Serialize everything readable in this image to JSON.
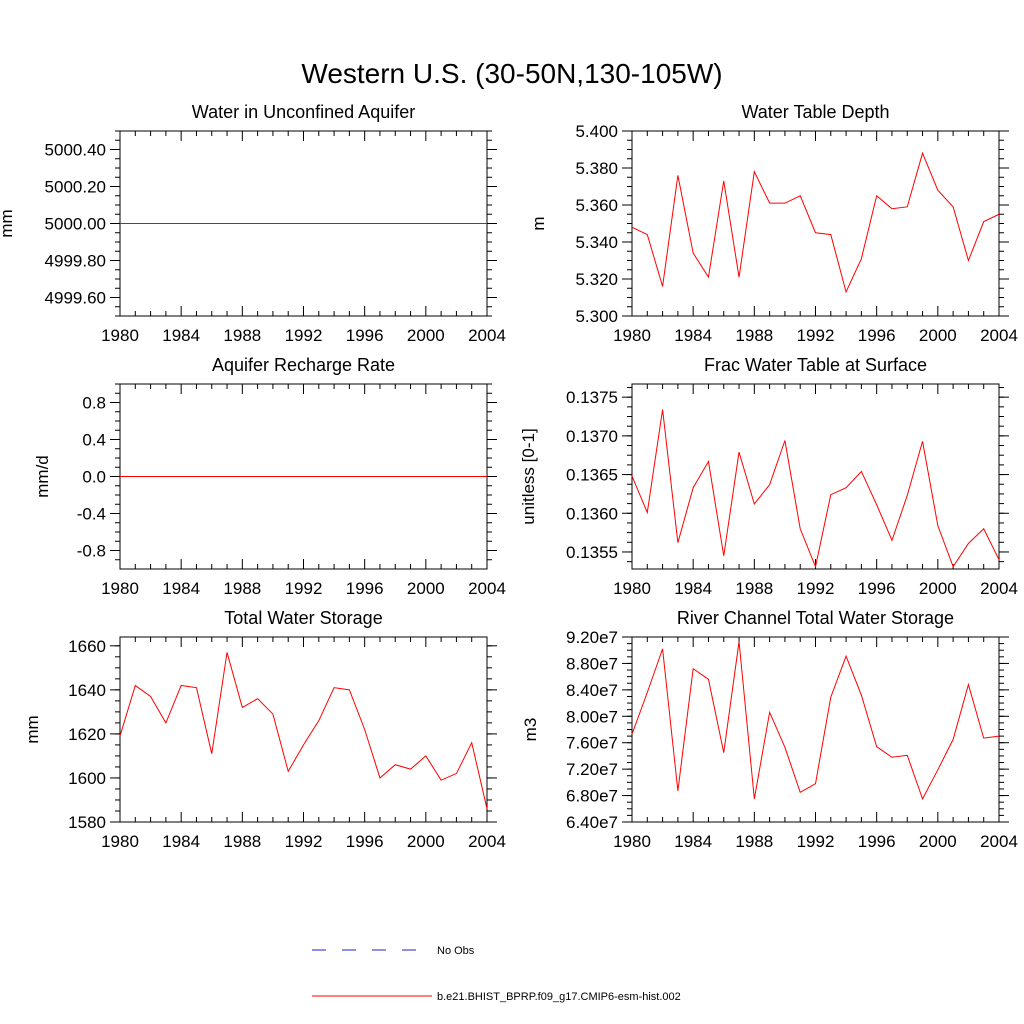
{
  "main_title": "Western U.S. (30-50N,130-105W)",
  "legend": [
    {
      "label": "No Obs",
      "color": "#2020c0",
      "dash": true
    },
    {
      "label": "b.e21.BHIST_BPRP.f09_g17.CMIP6-esm-hist.002",
      "color": "#ff0000",
      "dash": false
    }
  ],
  "chart_data": [
    {
      "type": "line",
      "title": "Water in Unconfined Aquifer",
      "ylabel": "mm",
      "xlim": [
        1980,
        2004
      ],
      "ylim": [
        4999.5,
        5000.5
      ],
      "xticks": [
        1980,
        1984,
        1988,
        1992,
        1996,
        2000,
        2004
      ],
      "yticks": [
        4999.6,
        4999.8,
        5000.0,
        5000.2,
        5000.4
      ],
      "ytick_labels": [
        "4999.60",
        "4999.80",
        "5000.00",
        "5000.20",
        "5000.40"
      ],
      "series": [
        {
          "color": "#ff0000",
          "x": [
            1980,
            1981,
            1982,
            1983,
            1984,
            1985,
            1986,
            1987,
            1988,
            1989,
            1990,
            1991,
            1992,
            1993,
            1994,
            1995,
            1996,
            1997,
            1998,
            1999,
            2000,
            2001,
            2002,
            2003,
            2004
          ],
          "y": [
            5000,
            5000,
            5000,
            5000,
            5000,
            5000,
            5000,
            5000,
            5000,
            5000,
            5000,
            5000,
            5000,
            5000,
            5000,
            5000,
            5000,
            5000,
            5000,
            5000,
            5000,
            5000,
            5000,
            5000,
            5000
          ]
        }
      ]
    },
    {
      "type": "line",
      "title": "Water Table Depth",
      "ylabel": "m",
      "xlim": [
        1980,
        2004
      ],
      "ylim": [
        5.3,
        5.4
      ],
      "xticks": [
        1980,
        1984,
        1988,
        1992,
        1996,
        2000,
        2004
      ],
      "yticks": [
        5.3,
        5.32,
        5.34,
        5.36,
        5.38,
        5.4
      ],
      "ytick_labels": [
        "5.300",
        "5.320",
        "5.340",
        "5.360",
        "5.380",
        "5.400"
      ],
      "series": [
        {
          "color": "#ff0000",
          "x": [
            1980,
            1981,
            1982,
            1983,
            1984,
            1985,
            1986,
            1987,
            1988,
            1989,
            1990,
            1991,
            1992,
            1993,
            1994,
            1995,
            1996,
            1997,
            1998,
            1999,
            2000,
            2001,
            2002,
            2003,
            2004
          ],
          "y": [
            5.348,
            5.344,
            5.316,
            5.376,
            5.334,
            5.321,
            5.373,
            5.321,
            5.378,
            5.361,
            5.361,
            5.365,
            5.345,
            5.344,
            5.313,
            5.331,
            5.365,
            5.358,
            5.359,
            5.388,
            5.368,
            5.359,
            5.33,
            5.351,
            5.355
          ]
        }
      ]
    },
    {
      "type": "line",
      "title": "Aquifer Recharge Rate",
      "ylabel": "mm/d",
      "xlim": [
        1980,
        2004
      ],
      "ylim": [
        -1.0,
        1.0
      ],
      "xticks": [
        1980,
        1984,
        1988,
        1992,
        1996,
        2000,
        2004
      ],
      "yticks": [
        -0.8,
        -0.4,
        0.0,
        0.4,
        0.8
      ],
      "ytick_labels": [
        "-0.8",
        "-0.4",
        "0.0",
        "0.4",
        "0.8"
      ],
      "series": [
        {
          "color": "#ff0000",
          "x": [
            1980,
            1981,
            1982,
            1983,
            1984,
            1985,
            1986,
            1987,
            1988,
            1989,
            1990,
            1991,
            1992,
            1993,
            1994,
            1995,
            1996,
            1997,
            1998,
            1999,
            2000,
            2001,
            2002,
            2003,
            2004
          ],
          "y": [
            0,
            0,
            0,
            0,
            0,
            0,
            0,
            0,
            0,
            0,
            0,
            0,
            0,
            0,
            0,
            0,
            0,
            0,
            0,
            0,
            0,
            0,
            0,
            0,
            0
          ]
        }
      ]
    },
    {
      "type": "line",
      "title": "Frac Water Table at Surface",
      "ylabel": "unitless [0-1]",
      "xlim": [
        1980,
        2004
      ],
      "ylim": [
        0.13528,
        0.13767
      ],
      "xticks": [
        1980,
        1984,
        1988,
        1992,
        1996,
        2000,
        2004
      ],
      "yticks": [
        0.1355,
        0.136,
        0.1365,
        0.137,
        0.1375
      ],
      "ytick_labels": [
        "0.1355",
        "0.1360",
        "0.1365",
        "0.1370",
        "0.1375"
      ],
      "series": [
        {
          "color": "#ff0000",
          "x": [
            1980,
            1981,
            1982,
            1983,
            1984,
            1985,
            1986,
            1987,
            1988,
            1989,
            1990,
            1991,
            1992,
            1993,
            1994,
            1995,
            1996,
            1997,
            1998,
            1999,
            2000,
            2001,
            2002,
            2003,
            2004
          ],
          "y": [
            0.13648,
            0.13601,
            0.13734,
            0.13562,
            0.13633,
            0.13667,
            0.13545,
            0.13679,
            0.13612,
            0.13637,
            0.13694,
            0.1358,
            0.13531,
            0.13624,
            0.13633,
            0.13654,
            0.13611,
            0.13565,
            0.13623,
            0.13693,
            0.13584,
            0.13531,
            0.13561,
            0.1358,
            0.1354
          ]
        }
      ]
    },
    {
      "type": "line",
      "title": "Total Water Storage",
      "ylabel": "mm",
      "xlim": [
        1980,
        2004
      ],
      "ylim": [
        1580,
        1664
      ],
      "xticks": [
        1980,
        1984,
        1988,
        1992,
        1996,
        2000,
        2004
      ],
      "yticks": [
        1580,
        1600,
        1620,
        1640,
        1660
      ],
      "ytick_labels": [
        "1580",
        "1600",
        "1620",
        "1640",
        "1660"
      ],
      "series": [
        {
          "color": "#ff0000",
          "x": [
            1980,
            1981,
            1982,
            1983,
            1984,
            1985,
            1986,
            1987,
            1988,
            1989,
            1990,
            1991,
            1992,
            1993,
            1994,
            1995,
            1996,
            1997,
            1998,
            1999,
            2000,
            2001,
            2002,
            2003,
            2004
          ],
          "y": [
            1619,
            1642,
            1637,
            1625,
            1642,
            1641,
            1611,
            1657,
            1632,
            1636,
            1629,
            1603,
            1615,
            1626,
            1641,
            1640,
            1622,
            1600,
            1606,
            1604,
            1610,
            1599,
            1602,
            1616,
            1586
          ]
        }
      ]
    },
    {
      "type": "line",
      "title": "River Channel Total Water Storage",
      "ylabel": "m3",
      "xlim": [
        1980,
        2004
      ],
      "ylim": [
        64000000,
        92000000
      ],
      "xticks": [
        1980,
        1984,
        1988,
        1992,
        1996,
        2000,
        2004
      ],
      "yticks": [
        64000000,
        68000000,
        72000000,
        76000000,
        80000000,
        84000000,
        88000000,
        92000000
      ],
      "ytick_labels": [
        "6.40e7",
        "6.80e7",
        "7.20e7",
        "7.60e7",
        "8.00e7",
        "8.40e7",
        "8.80e7",
        "9.20e7"
      ],
      "series": [
        {
          "color": "#ff0000",
          "x": [
            1980,
            1981,
            1982,
            1983,
            1984,
            1985,
            1986,
            1987,
            1988,
            1989,
            1990,
            1991,
            1992,
            1993,
            1994,
            1995,
            1996,
            1997,
            1998,
            1999,
            2000,
            2001,
            2002,
            2003,
            2004
          ],
          "y": [
            77300000,
            83600000,
            90200000,
            68700000,
            87200000,
            85600000,
            74500000,
            91300000,
            67500000,
            80600000,
            75300000,
            68500000,
            69800000,
            82900000,
            89100000,
            83200000,
            75400000,
            73800000,
            74100000,
            67500000,
            71900000,
            76500000,
            84800000,
            76700000,
            77000000
          ]
        }
      ]
    }
  ]
}
